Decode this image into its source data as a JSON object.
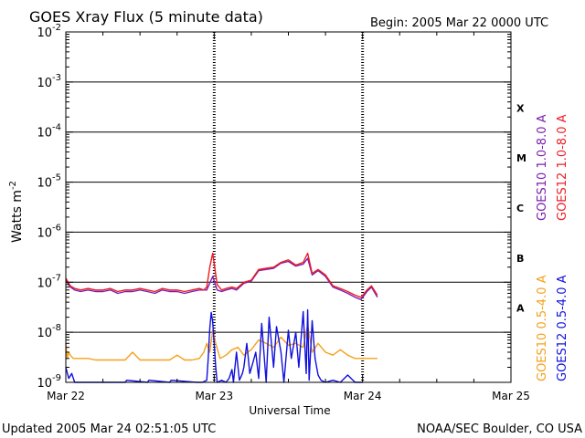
{
  "header": {
    "title": "GOES Xray Flux (5 minute data)",
    "begin": "Begin:  2005 Mar 22 0000 UTC"
  },
  "footer": {
    "updated": "Updated 2005 Mar 24 02:51:05 UTC",
    "credit": "NOAA/SEC Boulder, CO USA"
  },
  "chart_data": {
    "type": "line",
    "title": "GOES Xray Flux (5 minute data)",
    "xlabel": "Universal Time",
    "ylabel": "Watts m",
    "ylabel_exponent": "-2",
    "yscale": "log",
    "ylim_exponents": [
      -9,
      -2
    ],
    "y_ticks": [
      {
        "base": "10",
        "exp": "-2"
      },
      {
        "base": "10",
        "exp": "-3"
      },
      {
        "base": "10",
        "exp": "-4"
      },
      {
        "base": "10",
        "exp": "-5"
      },
      {
        "base": "10",
        "exp": "-6"
      },
      {
        "base": "10",
        "exp": "-7"
      },
      {
        "base": "10",
        "exp": "-8"
      },
      {
        "base": "10",
        "exp": "-9"
      }
    ],
    "x_ticks": [
      "Mar 22",
      "Mar 23",
      "Mar 24",
      "Mar 25"
    ],
    "x_range_days": [
      22,
      25
    ],
    "flare_classes": [
      {
        "label": "X",
        "exp": -3.5
      },
      {
        "label": "M",
        "exp": -4.5
      },
      {
        "label": "C",
        "exp": -5.5
      },
      {
        "label": "B",
        "exp": -6.5
      },
      {
        "label": "A",
        "exp": -7.5
      }
    ],
    "grid": "horizontal decades from 1e-8 to 1e-3",
    "legend": "right side, vertical",
    "series": [
      {
        "name": "GOES10 1.0-8.0 A",
        "color": "#7a1fb0",
        "x": [
          22.0,
          22.03,
          22.06,
          22.1,
          22.15,
          22.2,
          22.25,
          22.3,
          22.35,
          22.4,
          22.45,
          22.5,
          22.55,
          22.6,
          22.65,
          22.7,
          22.75,
          22.8,
          22.85,
          22.9,
          22.95,
          22.99,
          23.02,
          23.05,
          23.08,
          23.12,
          23.15,
          23.2,
          23.25,
          23.3,
          23.35,
          23.4,
          23.45,
          23.5,
          23.55,
          23.6,
          23.63,
          23.66,
          23.7,
          23.75,
          23.8,
          23.85,
          23.9,
          23.95,
          23.99,
          24.03,
          24.06,
          24.1
        ],
        "y": [
          1.1e-07,
          8e-08,
          7e-08,
          6.5e-08,
          7e-08,
          6.5e-08,
          6.5e-08,
          7e-08,
          6e-08,
          6.5e-08,
          6.5e-08,
          7e-08,
          6.5e-08,
          6e-08,
          7e-08,
          6.5e-08,
          6.5e-08,
          6e-08,
          6.5e-08,
          7e-08,
          7e-08,
          1.3e-07,
          7e-08,
          6.5e-08,
          7e-08,
          7.5e-08,
          7e-08,
          9.5e-08,
          1.05e-07,
          1.7e-07,
          1.8e-07,
          1.9e-07,
          2.4e-07,
          2.6e-07,
          2.1e-07,
          2.3e-07,
          3e-07,
          1.4e-07,
          1.7e-07,
          1.3e-07,
          8e-08,
          7e-08,
          6e-08,
          5e-08,
          4.5e-08,
          6.5e-08,
          8e-08,
          5e-08
        ]
      },
      {
        "name": "GOES12 1.0-8.0 A",
        "color": "#ee1c24",
        "x": [
          22.0,
          22.03,
          22.06,
          22.1,
          22.15,
          22.2,
          22.25,
          22.3,
          22.35,
          22.4,
          22.45,
          22.5,
          22.55,
          22.6,
          22.65,
          22.7,
          22.75,
          22.8,
          22.85,
          22.9,
          22.93,
          22.95,
          22.97,
          22.99,
          23.02,
          23.05,
          23.08,
          23.12,
          23.15,
          23.2,
          23.25,
          23.3,
          23.35,
          23.4,
          23.45,
          23.5,
          23.55,
          23.6,
          23.63,
          23.66,
          23.7,
          23.75,
          23.8,
          23.85,
          23.9,
          23.95,
          23.99,
          24.03,
          24.06,
          24.1
        ],
        "y": [
          1.2e-07,
          8.5e-08,
          7.5e-08,
          7e-08,
          7.5e-08,
          7e-08,
          7e-08,
          7.5e-08,
          6.5e-08,
          7e-08,
          7e-08,
          7.5e-08,
          7e-08,
          6.5e-08,
          7.5e-08,
          7e-08,
          7e-08,
          6.5e-08,
          7e-08,
          7.5e-08,
          7e-08,
          8e-08,
          2e-07,
          3.8e-07,
          9e-08,
          7e-08,
          7.5e-08,
          8e-08,
          7.5e-08,
          1e-07,
          1.1e-07,
          1.8e-07,
          1.9e-07,
          2e-07,
          2.5e-07,
          2.8e-07,
          2.2e-07,
          2.5e-07,
          3.8e-07,
          1.5e-07,
          1.8e-07,
          1.4e-07,
          8.5e-08,
          7.5e-08,
          6.5e-08,
          5.5e-08,
          5e-08,
          7e-08,
          8.5e-08,
          5.5e-08
        ]
      },
      {
        "name": "GOES10 0.5-4.0 A",
        "color": "#f5a01a",
        "x": [
          22.0,
          22.01,
          22.02,
          22.03,
          22.05,
          22.08,
          22.1,
          22.15,
          22.2,
          22.25,
          22.3,
          22.35,
          22.4,
          22.45,
          22.5,
          22.55,
          22.6,
          22.65,
          22.7,
          22.75,
          22.8,
          22.85,
          22.9,
          22.93,
          22.95,
          22.97,
          22.99,
          23.01,
          23.04,
          23.08,
          23.12,
          23.16,
          23.2,
          23.25,
          23.3,
          23.35,
          23.4,
          23.45,
          23.5,
          23.55,
          23.6,
          23.63,
          23.66,
          23.7,
          23.75,
          23.8,
          23.85,
          23.9,
          23.95,
          24.0,
          24.05,
          24.1
        ],
        "y": [
          6e-09,
          3e-09,
          4e-09,
          3.5e-09,
          3e-09,
          3e-09,
          3e-09,
          3e-09,
          2.8e-09,
          2.8e-09,
          2.8e-09,
          2.8e-09,
          2.8e-09,
          4e-09,
          2.8e-09,
          2.8e-09,
          2.8e-09,
          2.8e-09,
          2.8e-09,
          3.5e-09,
          2.8e-09,
          2.8e-09,
          3e-09,
          4e-09,
          6e-09,
          4e-09,
          1.1e-08,
          6e-09,
          3e-09,
          3.5e-09,
          4.5e-09,
          5e-09,
          3.5e-09,
          4.5e-09,
          7e-09,
          6e-09,
          5e-09,
          8e-09,
          5.5e-09,
          6e-09,
          5e-09,
          1.4e-08,
          4e-09,
          6e-09,
          4e-09,
          3.5e-09,
          4.5e-09,
          3.5e-09,
          3e-09,
          3e-09,
          3e-09,
          3e-09
        ]
      },
      {
        "name": "GOES12 0.5-4.0 A",
        "color": "#1010dd",
        "x": [
          22.0,
          22.02,
          22.04,
          22.06,
          22.4,
          22.41,
          22.55,
          22.56,
          22.7,
          22.71,
          22.88,
          22.92,
          22.95,
          22.96,
          22.97,
          22.98,
          22.99,
          23.0,
          23.01,
          23.02,
          23.05,
          23.08,
          23.1,
          23.12,
          23.13,
          23.15,
          23.17,
          23.19,
          23.2,
          23.22,
          23.24,
          23.26,
          23.28,
          23.3,
          23.32,
          23.35,
          23.37,
          23.4,
          23.42,
          23.45,
          23.47,
          23.5,
          23.52,
          23.55,
          23.57,
          23.6,
          23.62,
          23.63,
          23.64,
          23.66,
          23.68,
          23.7,
          23.72,
          23.75,
          23.8,
          23.85,
          23.9,
          23.95,
          24.0
        ],
        "y": [
          2e-09,
          1.2e-09,
          1.5e-09,
          9e-10,
          9e-10,
          1.1e-09,
          9e-10,
          1.1e-09,
          9e-10,
          1.1e-09,
          9e-10,
          9e-10,
          1.1e-09,
          3e-09,
          1.2e-08,
          2.5e-08,
          1.6e-08,
          6e-09,
          2e-09,
          9e-10,
          1.1e-09,
          9e-10,
          1.2e-09,
          1.8e-09,
          9e-10,
          4e-09,
          1.1e-09,
          1.5e-09,
          2e-09,
          6e-09,
          1.5e-09,
          2.4e-09,
          4e-09,
          1.2e-09,
          1.5e-08,
          9e-10,
          2e-08,
          2e-09,
          1.3e-08,
          4e-09,
          9e-10,
          1.1e-08,
          3e-09,
          1e-08,
          2e-09,
          2.6e-08,
          1.5e-09,
          2.8e-08,
          1.1e-09,
          1.7e-08,
          3e-09,
          1.4e-09,
          1.1e-09,
          9e-10,
          1.1e-09,
          9e-10,
          1.4e-09,
          9e-10,
          1e-09
        ]
      }
    ]
  }
}
